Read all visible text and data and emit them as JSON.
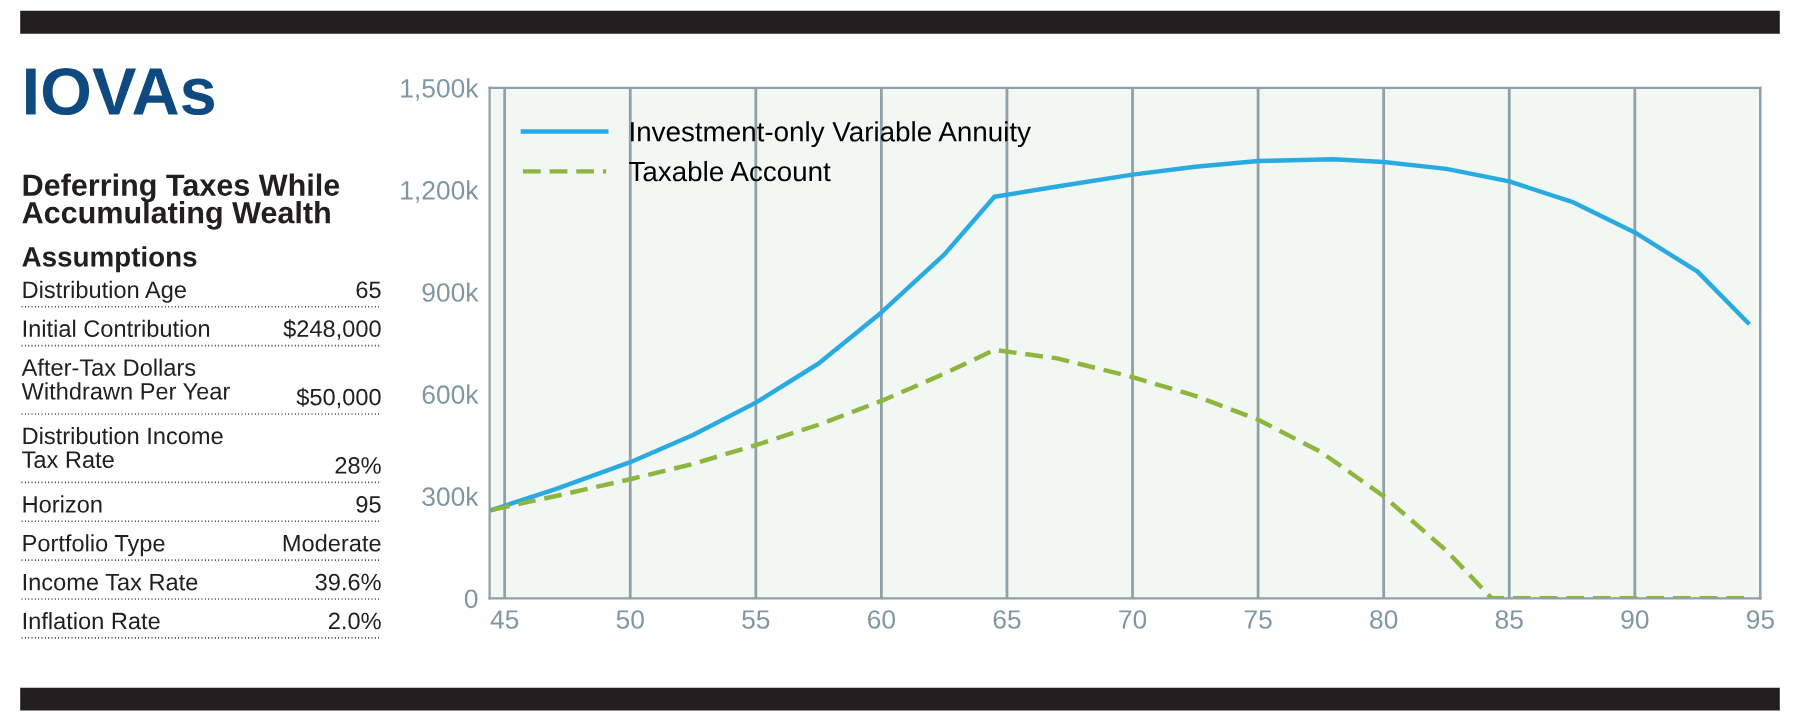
{
  "chart_data": {
    "type": "line",
    "title": "IOVAs",
    "subtitle": "Deferring Taxes While\nAccumulating Wealth",
    "annotations": [
      "Assumptions",
      "Distribution Age",
      "65",
      "Initial Contribution",
      "$248,000",
      "After-Tax Dollars\nWithdrawn Per Year",
      "$50,000",
      "Distribution Income\nTax Rate",
      "28%",
      "Horizon",
      "95",
      "Portfolio Type",
      "Moderate",
      "Income Tax Rate",
      "39.6%",
      "Inflation Rate",
      "2.0%"
    ],
    "series": [
      {
        "name": "Investment-only Variable Annuity",
        "color": "#29abe2",
        "line_style": "solid",
        "x": [
          44.5,
          47,
          50,
          52.5,
          55,
          57.5,
          60,
          62.5,
          64.5,
          67,
          70,
          72.5,
          75,
          78,
          80,
          82.5,
          85,
          87.5,
          90,
          92.5,
          94.5
        ],
        "values": [
          260,
          320,
          400,
          480,
          575,
          690,
          840,
          1010,
          1180,
          1210,
          1245,
          1268,
          1285,
          1290,
          1282,
          1262,
          1225,
          1165,
          1075,
          960,
          810
        ]
      },
      {
        "name": "Taxable Account",
        "color": "#8db63c",
        "line_style": "dashed",
        "x": [
          44.5,
          47,
          50,
          52.5,
          55,
          57.5,
          60,
          62.5,
          64.5,
          67,
          70,
          72.5,
          75,
          77.5,
          80,
          82.5,
          84.3,
          85,
          90,
          94.5
        ],
        "values": [
          260,
          300,
          350,
          395,
          450,
          510,
          580,
          660,
          730,
          705,
          650,
          595,
          525,
          430,
          300,
          140,
          0,
          0,
          0,
          0
        ]
      }
    ],
    "xlim": [
      44.4,
      95
    ],
    "xticks": [
      45,
      50,
      55,
      60,
      65,
      70,
      75,
      80,
      85,
      90,
      95
    ],
    "ylim": [
      0,
      1500
    ],
    "yticks": [
      {
        "value": 0,
        "label": "0"
      },
      {
        "value": 300,
        "label": "300k"
      },
      {
        "value": 600,
        "label": "600k"
      },
      {
        "value": 900,
        "label": "900k"
      },
      {
        "value": 1200,
        "label": "1,200k"
      },
      {
        "value": 1500,
        "label": "1,500k"
      }
    ],
    "grid": "x",
    "legend": "top left",
    "marker": "none"
  }
}
